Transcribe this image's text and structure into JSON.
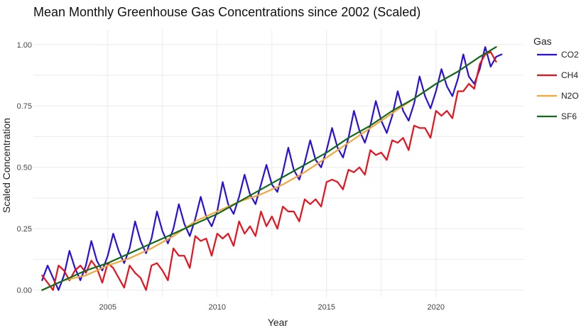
{
  "chart_data": {
    "type": "line",
    "title": "Mean Monthly Greenhouse Gas Concentrations since 2002 (Scaled)",
    "xlabel": "Year",
    "ylabel": "Scaled Concentration",
    "xlim": [
      2001.6,
      2024.0
    ],
    "ylim": [
      -0.03,
      1.06
    ],
    "x_ticks": [
      2005,
      2010,
      2015,
      2020
    ],
    "x_tick_labels": [
      "2005",
      "2010",
      "2015",
      "2020"
    ],
    "y_ticks": [
      0,
      0.25,
      0.5,
      0.75,
      1.0
    ],
    "y_tick_labels": [
      "0.00",
      "0.25",
      "0.50",
      "0.75",
      "1.00"
    ],
    "grid": true,
    "legend": {
      "title": "Gas",
      "placement": "right"
    },
    "series": [
      {
        "name": "CO2",
        "color": "#2b0fd6",
        "x": [
          2002.0,
          2002.25,
          2002.5,
          2002.75,
          2003.0,
          2003.25,
          2003.5,
          2003.75,
          2004.0,
          2004.25,
          2004.5,
          2004.75,
          2005.0,
          2005.25,
          2005.5,
          2005.75,
          2006.0,
          2006.25,
          2006.5,
          2006.75,
          2007.0,
          2007.25,
          2007.5,
          2007.75,
          2008.0,
          2008.25,
          2008.5,
          2008.75,
          2009.0,
          2009.25,
          2009.5,
          2009.75,
          2010.0,
          2010.25,
          2010.5,
          2010.75,
          2011.0,
          2011.25,
          2011.5,
          2011.75,
          2012.0,
          2012.25,
          2012.5,
          2012.75,
          2013.0,
          2013.25,
          2013.5,
          2013.75,
          2014.0,
          2014.25,
          2014.5,
          2014.75,
          2015.0,
          2015.25,
          2015.5,
          2015.75,
          2016.0,
          2016.25,
          2016.5,
          2016.75,
          2017.0,
          2017.25,
          2017.5,
          2017.75,
          2018.0,
          2018.25,
          2018.5,
          2018.75,
          2019.0,
          2019.25,
          2019.5,
          2019.75,
          2020.0,
          2020.25,
          2020.5,
          2020.75,
          2021.0,
          2021.25,
          2021.5,
          2021.75,
          2022.0,
          2022.25,
          2022.5,
          2022.75,
          2023.0
        ],
        "values": [
          0.04,
          0.1,
          0.05,
          0.0,
          0.06,
          0.16,
          0.09,
          0.04,
          0.1,
          0.2,
          0.12,
          0.08,
          0.14,
          0.23,
          0.16,
          0.11,
          0.17,
          0.28,
          0.2,
          0.15,
          0.21,
          0.32,
          0.24,
          0.19,
          0.25,
          0.35,
          0.27,
          0.22,
          0.29,
          0.38,
          0.3,
          0.26,
          0.32,
          0.44,
          0.35,
          0.31,
          0.38,
          0.47,
          0.39,
          0.35,
          0.43,
          0.51,
          0.43,
          0.4,
          0.48,
          0.58,
          0.49,
          0.45,
          0.52,
          0.61,
          0.53,
          0.5,
          0.57,
          0.66,
          0.58,
          0.54,
          0.62,
          0.73,
          0.65,
          0.6,
          0.67,
          0.77,
          0.69,
          0.64,
          0.71,
          0.81,
          0.73,
          0.69,
          0.76,
          0.87,
          0.79,
          0.74,
          0.81,
          0.9,
          0.83,
          0.79,
          0.86,
          0.96,
          0.87,
          0.84,
          0.9,
          0.99,
          0.91,
          0.95,
          0.96
        ]
      },
      {
        "name": "CH4",
        "color": "#e8111c",
        "x": [
          2002.0,
          2002.25,
          2002.5,
          2002.75,
          2003.0,
          2003.25,
          2003.5,
          2003.75,
          2004.0,
          2004.25,
          2004.5,
          2004.75,
          2005.0,
          2005.25,
          2005.5,
          2005.75,
          2006.0,
          2006.25,
          2006.5,
          2006.75,
          2007.0,
          2007.25,
          2007.5,
          2007.75,
          2008.0,
          2008.25,
          2008.5,
          2008.75,
          2009.0,
          2009.25,
          2009.5,
          2009.75,
          2010.0,
          2010.25,
          2010.5,
          2010.75,
          2011.0,
          2011.25,
          2011.5,
          2011.75,
          2012.0,
          2012.25,
          2012.5,
          2012.75,
          2013.0,
          2013.25,
          2013.5,
          2013.75,
          2014.0,
          2014.25,
          2014.5,
          2014.75,
          2015.0,
          2015.25,
          2015.5,
          2015.75,
          2016.0,
          2016.25,
          2016.5,
          2016.75,
          2017.0,
          2017.25,
          2017.5,
          2017.75,
          2018.0,
          2018.25,
          2018.5,
          2018.75,
          2019.0,
          2019.25,
          2019.5,
          2019.75,
          2020.0,
          2020.25,
          2020.5,
          2020.75,
          2021.0,
          2021.25,
          2021.5,
          2021.75,
          2022.0,
          2022.25,
          2022.5,
          2022.75
        ],
        "values": [
          0.06,
          0.03,
          0.0,
          0.1,
          0.08,
          0.04,
          0.08,
          0.1,
          0.07,
          0.12,
          0.09,
          0.03,
          0.11,
          0.09,
          0.05,
          0.01,
          0.1,
          0.07,
          0.05,
          0.0,
          0.1,
          0.11,
          0.08,
          0.04,
          0.17,
          0.14,
          0.14,
          0.09,
          0.22,
          0.2,
          0.21,
          0.14,
          0.23,
          0.21,
          0.23,
          0.18,
          0.28,
          0.23,
          0.26,
          0.22,
          0.32,
          0.26,
          0.3,
          0.25,
          0.34,
          0.32,
          0.32,
          0.28,
          0.37,
          0.35,
          0.37,
          0.34,
          0.44,
          0.45,
          0.44,
          0.41,
          0.49,
          0.48,
          0.5,
          0.47,
          0.57,
          0.55,
          0.56,
          0.53,
          0.61,
          0.6,
          0.62,
          0.57,
          0.67,
          0.66,
          0.66,
          0.62,
          0.73,
          0.71,
          0.73,
          0.7,
          0.81,
          0.81,
          0.84,
          0.82,
          0.92,
          0.96,
          0.97,
          0.93
        ]
      },
      {
        "name": "N2O",
        "color": "#f5a53a",
        "x": [
          2002.0,
          2003.0,
          2004.0,
          2004.5,
          2005.0,
          2006.0,
          2007.0,
          2008.0,
          2009.0,
          2010.0,
          2011.0,
          2012.0,
          2013.0,
          2014.0,
          2015.0,
          2016.0,
          2017.0,
          2018.0,
          2019.0,
          2020.0,
          2021.0,
          2022.0,
          2022.75
        ],
        "values": [
          0.0,
          0.04,
          0.06,
          0.08,
          0.1,
          0.13,
          0.17,
          0.22,
          0.28,
          0.32,
          0.36,
          0.39,
          0.43,
          0.48,
          0.54,
          0.6,
          0.66,
          0.72,
          0.78,
          0.84,
          0.89,
          0.95,
          0.99
        ]
      },
      {
        "name": "SF6",
        "color": "#0f6b1b",
        "x": [
          2002.0,
          2003.0,
          2004.0,
          2005.0,
          2006.0,
          2007.0,
          2008.0,
          2009.0,
          2010.0,
          2011.0,
          2012.0,
          2013.0,
          2014.0,
          2015.0,
          2016.0,
          2017.0,
          2018.0,
          2019.0,
          2020.0,
          2021.0,
          2022.0,
          2022.75
        ],
        "values": [
          0.0,
          0.04,
          0.08,
          0.11,
          0.15,
          0.19,
          0.23,
          0.27,
          0.31,
          0.36,
          0.41,
          0.46,
          0.51,
          0.56,
          0.62,
          0.67,
          0.73,
          0.78,
          0.84,
          0.89,
          0.95,
          0.99
        ]
      }
    ]
  }
}
